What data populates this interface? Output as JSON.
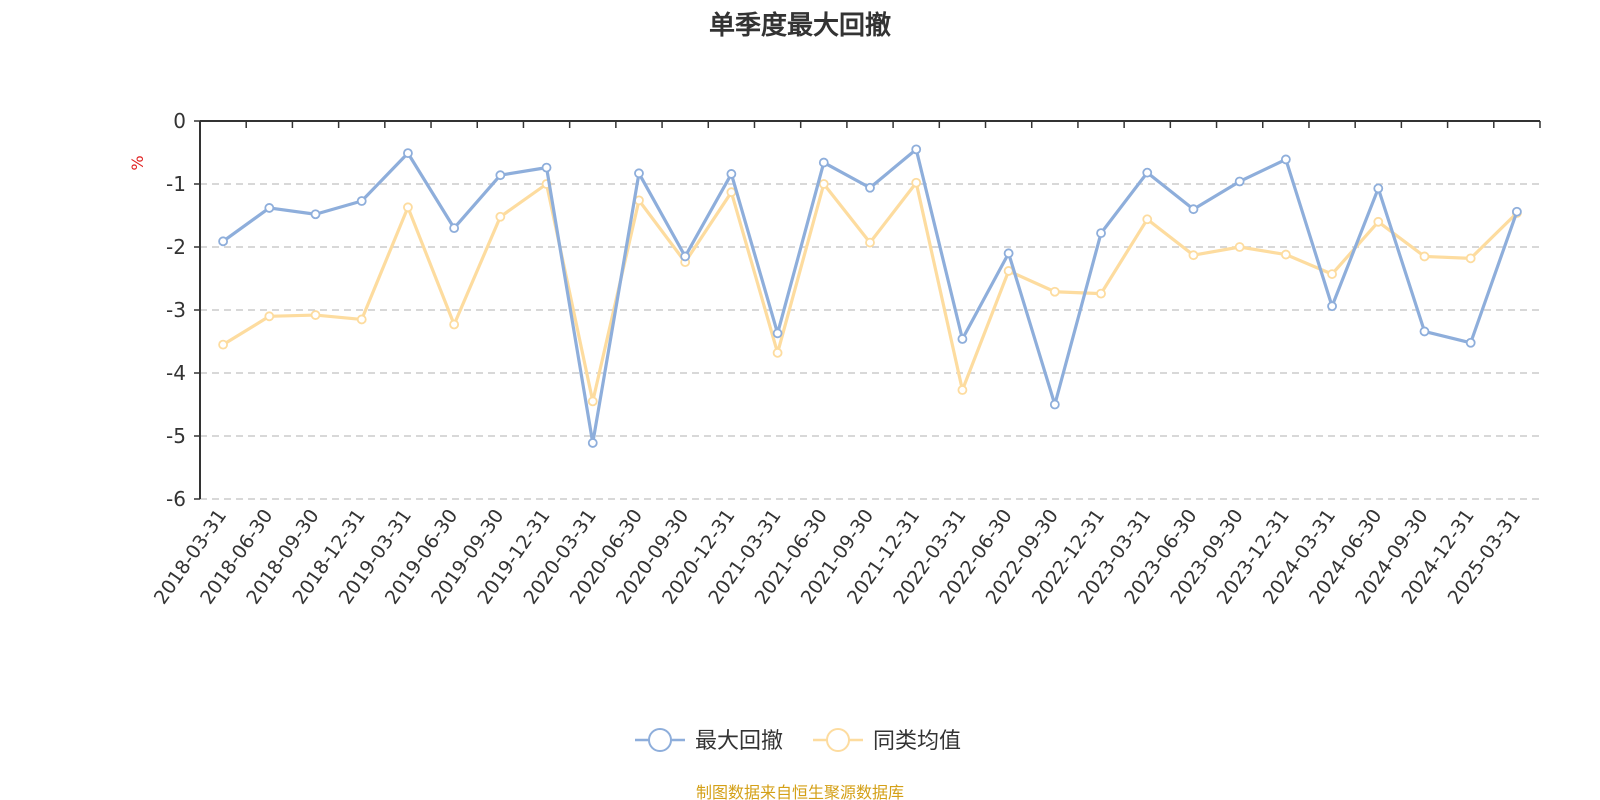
{
  "chart_data": {
    "type": "line",
    "title": "单季度最大回撤",
    "ylabel": "%",
    "ylim": [
      -6,
      0
    ],
    "yticks": [
      0,
      -1,
      -2,
      -3,
      -4,
      -5,
      -6
    ],
    "grid": true,
    "legend_position": "bottom",
    "categories": [
      "2018-03-31",
      "2018-06-30",
      "2018-09-30",
      "2018-12-31",
      "2019-03-31",
      "2019-06-30",
      "2019-09-30",
      "2019-12-31",
      "2020-03-31",
      "2020-06-30",
      "2020-09-30",
      "2020-12-31",
      "2021-03-31",
      "2021-06-30",
      "2021-09-30",
      "2021-12-31",
      "2022-03-31",
      "2022-06-30",
      "2022-09-30",
      "2022-12-31",
      "2023-03-31",
      "2023-06-30",
      "2023-09-30",
      "2023-12-31",
      "2024-03-31",
      "2024-06-30",
      "2024-09-30",
      "2024-12-31",
      "2025-03-31"
    ],
    "series": [
      {
        "name": "最大回撤",
        "color": "#8eaedb",
        "values": [
          -1.91,
          -1.38,
          -1.48,
          -1.27,
          -0.51,
          -1.7,
          -0.86,
          -0.74,
          -5.11,
          -0.83,
          -2.15,
          -0.84,
          -3.37,
          -0.66,
          -1.06,
          -0.45,
          -3.46,
          -2.1,
          -4.5,
          -1.78,
          -0.82,
          -1.4,
          -0.96,
          -0.61,
          -2.94,
          -1.07,
          -3.34,
          -3.52,
          -1.44
        ]
      },
      {
        "name": "同类均值",
        "color": "#fddc9f",
        "values": [
          -3.55,
          -3.1,
          -3.08,
          -3.15,
          -1.37,
          -3.23,
          -1.52,
          -1.0,
          -4.45,
          -1.26,
          -2.24,
          -1.13,
          -3.68,
          -1.0,
          -1.93,
          -0.98,
          -4.27,
          -2.38,
          -2.71,
          -2.74,
          -1.56,
          -2.13,
          -2.0,
          -2.12,
          -2.43,
          -1.6,
          -2.15,
          -2.18,
          -1.46
        ]
      }
    ]
  },
  "footer": {
    "source": "制图数据来自恒生聚源数据库",
    "source_color": "#d4a017"
  },
  "colors": {
    "axis": "#333333",
    "grid": "#cccccc",
    "unit": "#e02020"
  }
}
